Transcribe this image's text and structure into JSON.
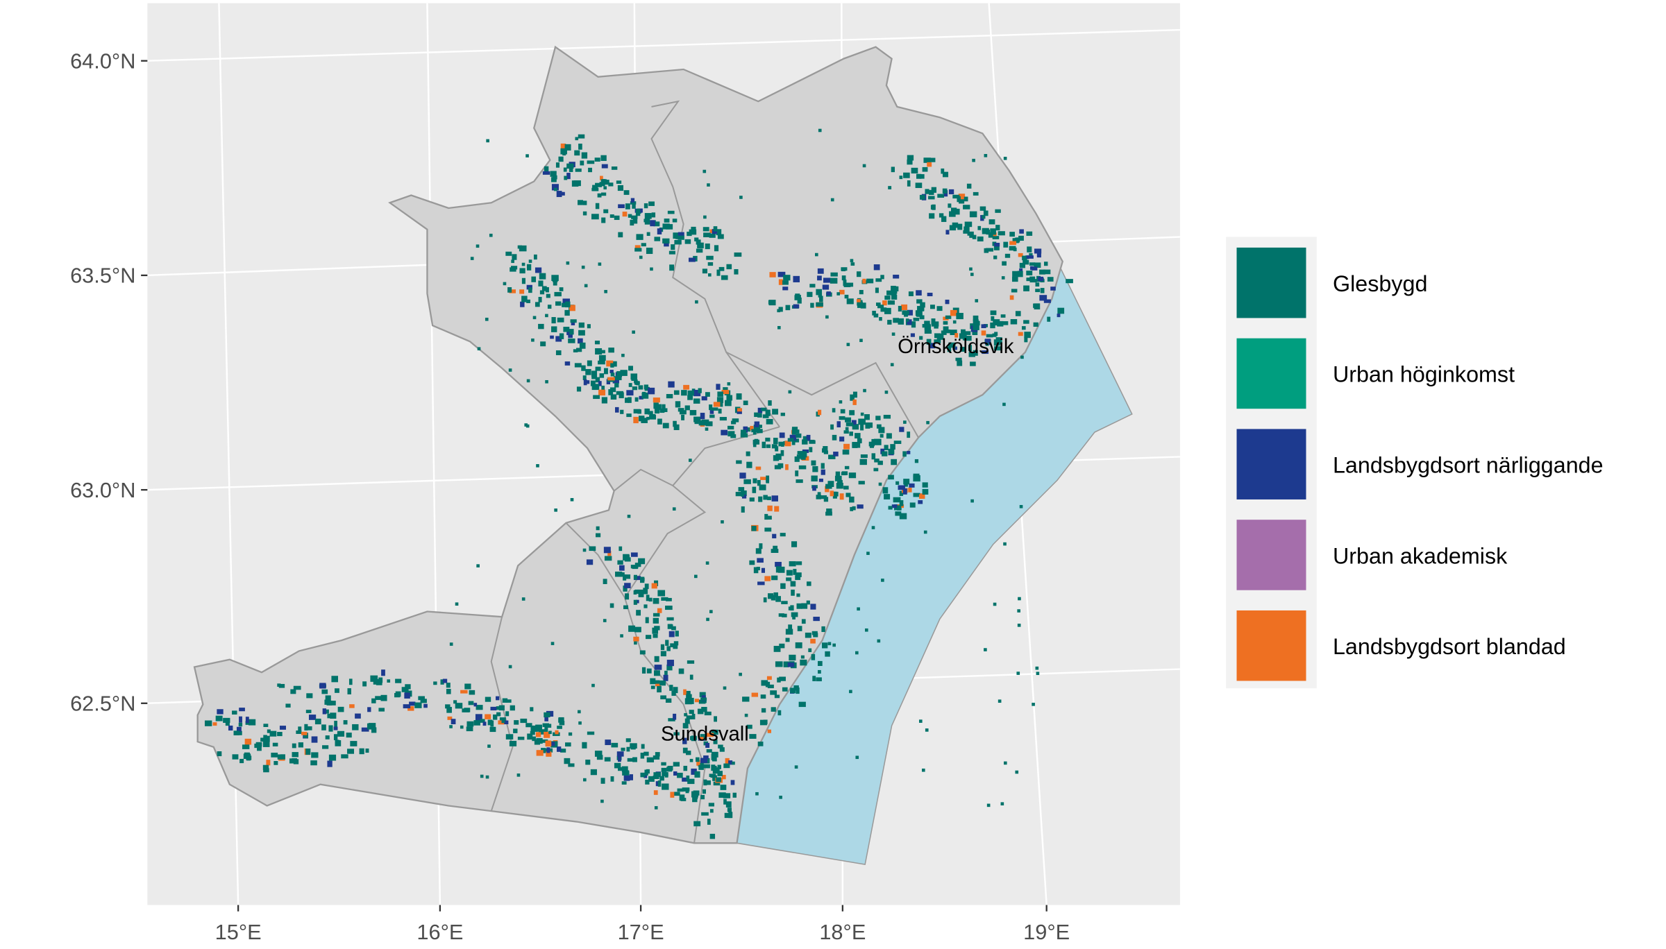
{
  "x_axis": {
    "labels": [
      "15°E",
      "16°E",
      "17°E",
      "18°E",
      "19°E"
    ]
  },
  "y_axis": {
    "labels": [
      "62.5°N",
      "63.0°N",
      "63.5°N",
      "64.0°N"
    ]
  },
  "legend": {
    "items": [
      {
        "label": "Glesbygd",
        "color": "#00736a"
      },
      {
        "label": "Urban höginkomst",
        "color": "#009e7f"
      },
      {
        "label": "Landsbygdsort närliggande",
        "color": "#1d3a8f"
      },
      {
        "label": "Urban akademisk",
        "color": "#a56eab"
      },
      {
        "label": "Landsbygdsort blandad",
        "color": "#ee7022"
      }
    ]
  },
  "places": [
    {
      "label": "Örnsköldsvik"
    },
    {
      "label": "Sundsvall"
    }
  ]
}
